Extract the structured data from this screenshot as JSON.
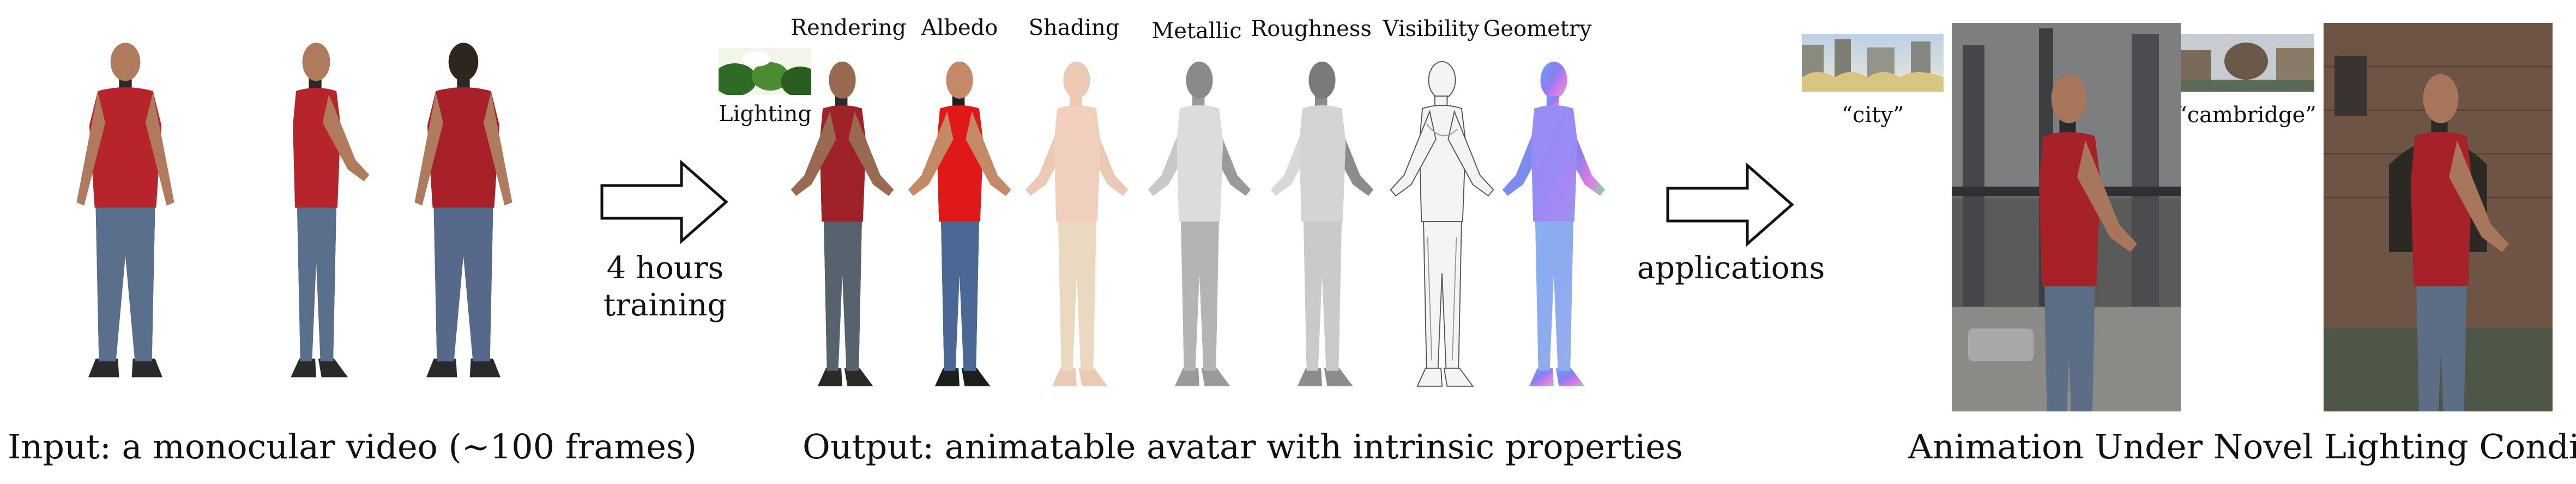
{
  "input": {
    "caption": "Input: a monocular video (~100 frames)"
  },
  "middle": {
    "arrow_text_line1": "4 hours",
    "arrow_text_line2": "training",
    "lighting_label": "Lighting",
    "columns": [
      "Rendering",
      "Albedo",
      "Shading",
      "Metallic",
      "Roughness",
      "Visibility",
      "Geometry"
    ],
    "caption": "Output: animatable avatar with intrinsic properties"
  },
  "right": {
    "arrow_text": "applications",
    "env1_label": "“city”",
    "env2_label": "“cambridge”",
    "caption": "Animation Under Novel Lighting Condition"
  },
  "colors": {
    "shirt_red": "#b8242c",
    "albedo_red": "#e01818",
    "jeans_blue": "#5a6f8c",
    "skin": "#b07a5c",
    "shading": "#ecc9b4",
    "geometry_a": "#7b8cf0",
    "geometry_b": "#e07be8"
  }
}
